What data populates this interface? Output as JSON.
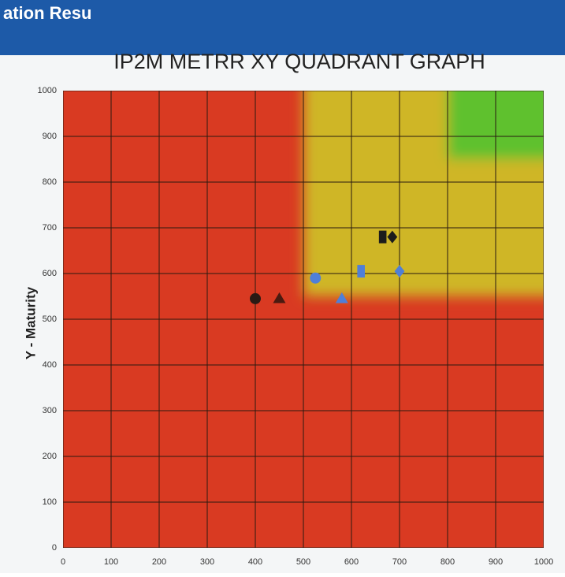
{
  "slide_header": "ation Resu",
  "chart_data": {
    "type": "scatter",
    "title": "IP2M METRR XY QUADRANT GRAPH",
    "y_label": "Y - Maturity",
    "xlim": [
      0,
      1000
    ],
    "ylim": [
      0,
      1000
    ],
    "xticks": [
      0,
      100,
      200,
      300,
      400,
      500,
      600,
      700,
      800,
      900,
      1000
    ],
    "yticks": [
      0,
      100,
      200,
      300,
      400,
      500,
      600,
      700,
      800,
      900,
      1000
    ],
    "grid": true,
    "background_color": "#d93a22",
    "regions": [
      {
        "xlim": [
          500,
          1000
        ],
        "ylim": [
          550,
          1000
        ],
        "color": "#cfb628"
      },
      {
        "xlim": [
          800,
          1000
        ],
        "ylim": [
          850,
          1000
        ],
        "color": "#5fc12e"
      }
    ],
    "series": [
      {
        "marker": "circle",
        "color": "#2a1a14",
        "x": [
          400
        ],
        "values": [
          545
        ]
      },
      {
        "marker": "triangle",
        "color": "#4a1a10",
        "x": [
          450
        ],
        "values": [
          545
        ]
      },
      {
        "marker": "square",
        "color": "#1c1c1c",
        "x": [
          665
        ],
        "values": [
          680
        ]
      },
      {
        "marker": "diamond",
        "color": "#1c1c1c",
        "x": [
          685
        ],
        "values": [
          680
        ]
      },
      {
        "marker": "circle",
        "color": "#4f7fd8",
        "x": [
          525
        ],
        "values": [
          590
        ]
      },
      {
        "marker": "triangle",
        "color": "#4f7fd8",
        "x": [
          580
        ],
        "values": [
          545
        ]
      },
      {
        "marker": "square",
        "color": "#4f7fd8",
        "x": [
          620
        ],
        "values": [
          605
        ]
      },
      {
        "marker": "diamond",
        "color": "#4f7fd8",
        "x": [
          700
        ],
        "values": [
          605
        ]
      }
    ]
  }
}
